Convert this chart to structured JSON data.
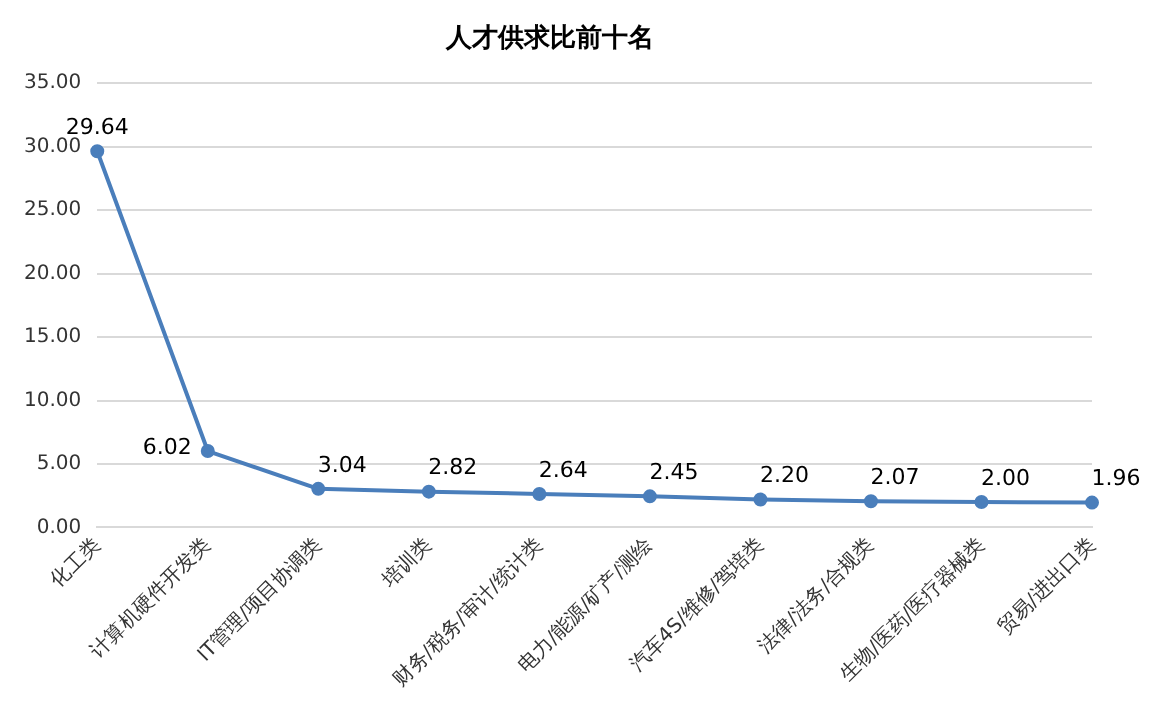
{
  "chart_data": {
    "type": "line",
    "title": "人才供求比前十名",
    "categories": [
      "化工类",
      "计算机硬件开发类",
      "IT管理/项目协调类",
      "培训类",
      "财务/税务/审计/统计类",
      "电力/能源/矿产/测绘",
      "汽车4S/维修/驾培类",
      "法律/法务/合规类",
      "生物/医药/医疗器械类",
      "贸易/进出口类"
    ],
    "values": [
      29.64,
      6.02,
      3.04,
      2.82,
      2.64,
      2.45,
      2.2,
      2.07,
      2.0,
      1.96
    ],
    "value_labels": [
      "29.64",
      "6.02",
      "3.04",
      "2.82",
      "2.64",
      "2.45",
      "2.20",
      "2.07",
      "2.00",
      "1.96"
    ],
    "color": "#4a7ebb",
    "ylim": [
      0,
      35
    ],
    "yticks": [
      {
        "value": 0,
        "label": "0.00"
      },
      {
        "value": 5,
        "label": "5.00"
      },
      {
        "value": 10,
        "label": "10.00"
      },
      {
        "value": 15,
        "label": "15.00"
      },
      {
        "value": 20,
        "label": "20.00"
      },
      {
        "value": 25,
        "label": "25.00"
      },
      {
        "value": 30,
        "label": "30.00"
      },
      {
        "value": 35,
        "label": "35.00"
      }
    ],
    "grid": "y",
    "marker": "circle",
    "legend": false
  }
}
